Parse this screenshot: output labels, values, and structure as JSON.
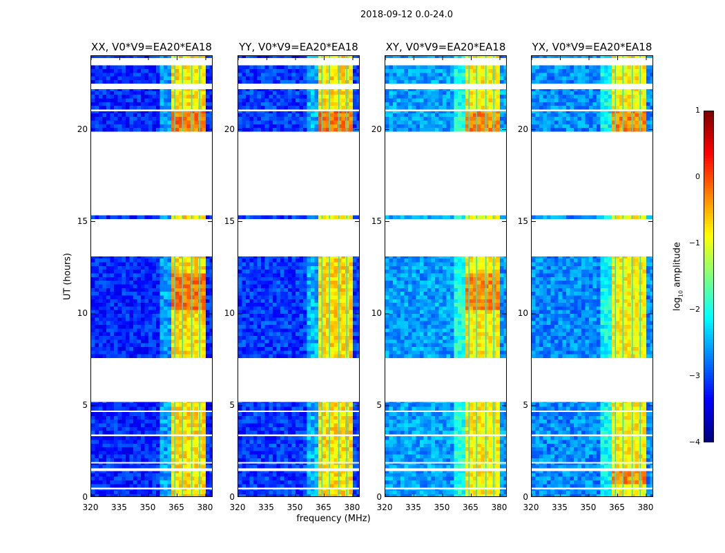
{
  "chart_data": {
    "type": "heatmap",
    "title": "2018-09-12 0.0-24.0",
    "xlabel": "frequency (MHz)",
    "ylabel": "UT (hours)",
    "xlim": [
      320,
      384
    ],
    "ylim": [
      0,
      24
    ],
    "xticks": [
      "320",
      "335",
      "350",
      "365",
      "380"
    ],
    "xtick_values": [
      320,
      335,
      350,
      365,
      380
    ],
    "yticks": [
      "0",
      "5",
      "10",
      "15",
      "20"
    ],
    "ytick_values": [
      0,
      5,
      10,
      15,
      20
    ],
    "colormap": "jet",
    "colorbar": {
      "label_prefix": "log",
      "label_sub": "10",
      "label_suffix": " amplitude",
      "range": [
        -4,
        1
      ],
      "ticks": [
        "−4",
        "−3",
        "−2",
        "−1",
        "0",
        "1"
      ],
      "tick_values": [
        -4,
        -3,
        -2,
        -1,
        0,
        1
      ]
    },
    "valid_time_segments": [
      [
        0,
        0.45
      ],
      [
        0.55,
        1.45
      ],
      [
        1.6,
        1.85
      ],
      [
        1.95,
        3.35
      ],
      [
        3.45,
        4.65
      ],
      [
        4.75,
        5.2
      ],
      [
        7.6,
        13.1
      ],
      [
        15.15,
        15.35
      ],
      [
        19.9,
        21.0
      ],
      [
        21.1,
        22.2
      ],
      [
        22.5,
        23.5
      ],
      [
        23.9,
        24
      ]
    ],
    "band_mhz": [
      361,
      380
    ],
    "channel_edges_mhz": [
      363.5,
      367.5,
      372.5,
      376.5
    ],
    "panels": [
      {
        "title": "XX, V0*V9=EA20*EA18",
        "background_level": -3.2,
        "band_level": -0.7,
        "peak_hours": [
          [
            10,
            12
          ],
          [
            19.9,
            21
          ]
        ]
      },
      {
        "title": "YY, V0*V9=EA20*EA18",
        "background_level": -3.1,
        "band_level": -0.7,
        "peak_hours": [
          [
            19.9,
            21
          ]
        ]
      },
      {
        "title": "XY, V0*V9=EA20*EA18",
        "background_level": -2.6,
        "band_level": -0.8,
        "peak_hours": [
          [
            10,
            12
          ],
          [
            19.9,
            21
          ]
        ]
      },
      {
        "title": "YX, V0*V9=EA20*EA18",
        "background_level": -2.7,
        "band_level": -0.8,
        "peak_hours": [
          [
            0.6,
            1.4
          ],
          [
            19.9,
            21
          ]
        ]
      }
    ]
  }
}
